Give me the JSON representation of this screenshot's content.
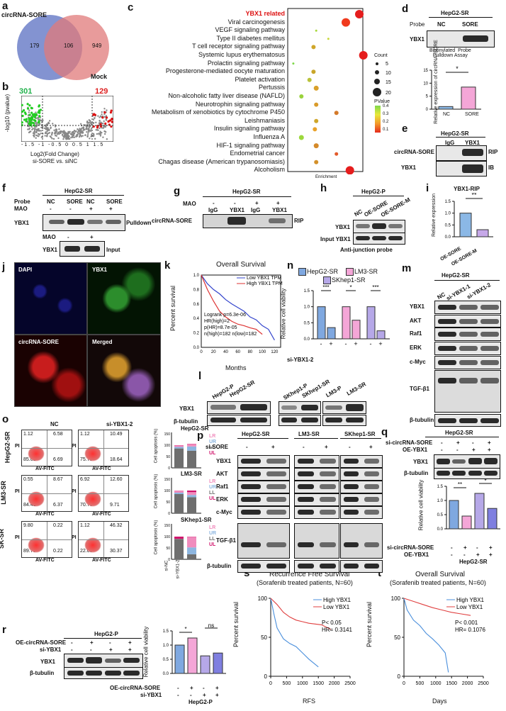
{
  "labels": {
    "a": "a",
    "b": "b",
    "c": "c",
    "d": "d",
    "e": "e",
    "f": "f",
    "g": "g",
    "h": "h",
    "i": "i",
    "j": "j",
    "k": "k",
    "l": "l",
    "m": "m",
    "n": "n",
    "o": "o",
    "p": "p",
    "q": "q",
    "r": "r",
    "s": "s",
    "t": "t"
  },
  "panel_a": {
    "left": "circRNA-SORE",
    "right": "Mock",
    "n_left": "179",
    "n_mid": "106",
    "n_right": "949"
  },
  "panel_b": {
    "n_down": "301",
    "n_up": "129",
    "ylabel": "-log10 (pvalue)",
    "xlabel": "Log2(Fold Change)",
    "subtitle": "si-SORE vs. siNC",
    "yticks": [
      "4",
      "3",
      "2",
      "1",
      "0"
    ],
    "xticks": [
      "-1.5",
      "-1",
      "-0.5",
      "0",
      "0.5",
      "1",
      "1.5"
    ]
  },
  "panel_c": {
    "chart_data": {
      "type": "scatter",
      "xlabel": "Enrichment",
      "terms": [
        "YBX1 related",
        "Viral carcinogenesis",
        "VEGF signaling pathway",
        "Type II diabetes mellitus",
        "T cell receptor signaling pathway",
        "Systemic lupus erythematosus",
        "Prolactin signaling pathway",
        "Progesterone-mediated oocyte maturation",
        "Platelet activation",
        "Pertussis",
        "Non-alcoholic fatty liver disease (NAFLD)",
        "Neurotrophin signaling pathway",
        "Metabolism of xenobiotics by cytochrome P450",
        "Leishmaniasis",
        "Insulin signaling pathway",
        "Influenza A",
        "HIF-1 signaling pathway",
        "Endometrial cancer",
        "Chagas disease (American trypanosomiasis)",
        "Alcoholism"
      ],
      "legend_count_title": "Count",
      "legend_count": [
        "5",
        "10",
        "15",
        "20"
      ],
      "legend_p_title": "PValue",
      "legend_p": [
        "0.4",
        "0.3",
        "0.2",
        "0.1"
      ]
    }
  },
  "panel_d": {
    "cell": "HepG2-SR",
    "probe": "Probe",
    "nc": "NC",
    "sore": "SORE",
    "protein": "YBX1",
    "assay": "Biotinylated  Probe\nPulldown Assay",
    "ylabel": "Relative expression of circRNA-SORE",
    "sig": "*",
    "chart_data": {
      "type": "bar",
      "categories": [
        "NC",
        "SORE"
      ],
      "values": [
        1,
        8.5
      ],
      "ylim": [
        0,
        15
      ],
      "yticks": [
        "0",
        "5",
        "10",
        "15"
      ]
    }
  },
  "panel_e": {
    "cell": "HepG2-SR",
    "igg": "IgG",
    "ybx1": "YBX1",
    "row1": "circRNA-SORE",
    "row2": "YBX1",
    "rip": "RIP",
    "ib": "IB"
  },
  "panel_f": {
    "probe": "Probe",
    "mao": "MAO",
    "cell": "HepG2-SR",
    "cols": [
      "NC",
      "SORE",
      "NC",
      "SORE"
    ],
    "mao_vals": [
      "-",
      "-",
      "+",
      "+"
    ],
    "ybx1": "YBX1",
    "pulldown": "Pulldown",
    "mao2": "MAO",
    "mao2_vals": [
      "-",
      "+"
    ],
    "ybx1b": "YBX1",
    "input": "Input"
  },
  "panel_g": {
    "cell": "HepG2-SR",
    "mao": "MAO",
    "mao_vals": [
      "-",
      "-",
      "+",
      "+"
    ],
    "cols": [
      "IgG",
      "YBX1",
      "IgG",
      "YBX1"
    ],
    "row": "circRNA-SORE",
    "rip": "RIP"
  },
  "panel_h": {
    "cell": "HepG2-P",
    "cols": [
      "NC",
      "OE-SORE",
      "OE-SORE-M"
    ],
    "row1": "YBX1",
    "row2": "Input YBX1",
    "caption": "Anti-junction probe"
  },
  "panel_i": {
    "title": "YBX1-RIP",
    "ylabel": "Relative expression",
    "sig": "**",
    "chart_data": {
      "type": "bar",
      "categories": [
        "OE-SORE",
        "OE-SORE-M"
      ],
      "values": [
        1.0,
        0.3
      ],
      "ylim": [
        0,
        1.5
      ],
      "yticks": [
        "0.0",
        "0.5",
        "1.0",
        "1.5"
      ]
    }
  },
  "panel_j": {
    "dapi": "DAPI",
    "ybx1": "YBX1",
    "circ": "circRNA-SORE",
    "merged": "Merged"
  },
  "panel_k": {
    "title": "Overall Survival",
    "ylabel": "Percent survival",
    "xlabel": "Months",
    "legend": [
      "Low YBX1 TPM",
      "High YBX1 TPM"
    ],
    "stats": [
      "Logrank p=6.3e-06",
      "HR(high)=2",
      "p(HR)=8.7e-05",
      "n(high)=182   n(low)=182"
    ],
    "xticks": [
      "0",
      "20",
      "40",
      "60",
      "80",
      "100",
      "120"
    ],
    "yticks": [
      "0.0",
      "0.2",
      "0.4",
      "0.6",
      "0.8",
      "1.0"
    ]
  },
  "panel_n": {
    "legend": [
      "HepG2-SR",
      "LM3-SR",
      "SKhep1-SR"
    ],
    "ylabel": "Relative cell viability",
    "xlab": "si-YBX1-2",
    "signs": [
      "-",
      "+",
      "-",
      "+",
      "-",
      "+"
    ],
    "sigs": [
      "***",
      "*",
      "***"
    ],
    "chart_data": {
      "type": "bar",
      "series": [
        {
          "name": "HepG2-SR",
          "values": [
            1.0,
            0.35
          ]
        },
        {
          "name": "LM3-SR",
          "values": [
            1.0,
            0.58
          ]
        },
        {
          "name": "SKhep1-SR",
          "values": [
            1.0,
            0.25
          ]
        }
      ],
      "ylim": [
        0,
        1.5
      ],
      "yticks": [
        "0.0",
        "0.5",
        "1.0",
        "1.5"
      ]
    }
  },
  "panel_l": {
    "cols": [
      "HepG2-P",
      "HepG2-SR",
      "SKhep1-P",
      "SKhep1-SR",
      "LM3-P",
      "LM3-SR"
    ],
    "row1": "YBX1",
    "row2": "β-tubulin"
  },
  "panel_m": {
    "cell": "HepG2-SR",
    "cols": [
      "NC",
      "si-YBX1-1",
      "si-YBX1-2"
    ],
    "rows": [
      "YBX1",
      "AKT",
      "Raf1",
      "ERK",
      "c-Myc",
      "TGF-β1",
      "β-tubulin"
    ]
  },
  "panel_o": {
    "col1": "NC",
    "col2": "si-YBX1-2",
    "rows": [
      {
        "name": "HepG2-SR",
        "nc": [
          "1.12",
          "6.58",
          "85.61",
          "6.69"
        ],
        "si": [
          "1.12",
          "10.49",
          "75.75",
          "18.64"
        ],
        "bar_title": "HepG2-SR"
      },
      {
        "name": "LM3-SR",
        "nc": [
          "0.55",
          "8.67",
          "84.41",
          "6.37"
        ],
        "si": [
          "6.92",
          "12.60",
          "70.76",
          "9.71"
        ],
        "bar_title": "LM3-SR"
      },
      {
        "name": "SK-SR",
        "nc": [
          "9.80",
          "0.22",
          "89.76",
          "0.22"
        ],
        "si": [
          "1.12",
          "46.32",
          "22.09",
          "30.37"
        ],
        "bar_title": "SKhep1-SR"
      }
    ],
    "pi": "PI",
    "av": "AV-FITC",
    "bar_ylabel": "Cell apoptosis (%)",
    "bar_legend": [
      "LR",
      "UR",
      "LL",
      "UL"
    ],
    "bar_x": [
      "si-NC",
      "si-YBX1-2"
    ],
    "yticks": [
      "0",
      "50",
      "100",
      "150"
    ]
  },
  "panel_p": {
    "cells": [
      "HepG2-SR",
      "LM3-SR",
      "SKhep1-SR"
    ],
    "si": "si-SORE",
    "signs": [
      "-",
      "+",
      "-",
      "+",
      "-",
      "+"
    ],
    "rows": [
      "YBX1",
      "AKT",
      "Raf1",
      "ERK",
      "c-Myc",
      "TGF-β1",
      "β-tubulin"
    ]
  },
  "panel_q": {
    "cell": "HepG2-SR",
    "r1": "si-circRNA-SORE",
    "r2": "OE-YBX1",
    "r1v": [
      "-",
      "+",
      "-",
      "+"
    ],
    "r2v": [
      "-",
      "-",
      "+",
      "+"
    ],
    "rows": [
      "YBX1",
      "β-tubulin"
    ],
    "ylabel": "Relative cell viability",
    "sigs": [
      "**",
      "*"
    ],
    "xrows": [
      "si-circRNA-SORE",
      "OE-YBX1"
    ],
    "xcell": "HepG2-SR",
    "chart_data": {
      "type": "bar",
      "values": [
        1.0,
        0.45,
        1.25,
        0.72
      ],
      "ylim": [
        0,
        1.5
      ],
      "yticks": [
        "0.0",
        "0.5",
        "1.0",
        "1.5"
      ]
    }
  },
  "panel_r": {
    "cell": "HepG2-P",
    "r1": "OE-circRNA-SORE",
    "r2": "si-YBX1",
    "r1v": [
      "-",
      "+",
      "-",
      "+"
    ],
    "r2v": [
      "-",
      "-",
      "+",
      "+"
    ],
    "rows": [
      "YBX1",
      "β-tubulin"
    ],
    "ylabel": "Relative cell viability",
    "sigs": [
      "*",
      "ns"
    ],
    "xrows": [
      "OE-circRNA-SORE",
      "si-YBX1"
    ],
    "xcell": "HepG2-P",
    "chart_data": {
      "type": "bar",
      "values": [
        1.0,
        1.25,
        0.62,
        0.72
      ],
      "ylim": [
        0,
        1.5
      ],
      "yticks": [
        "0.0",
        "0.5",
        "1.0",
        "1.5"
      ]
    }
  },
  "panel_s": {
    "title": "Recurrence Free Survival",
    "subtitle": "(Sorafenib treated patients, N=60)",
    "ylabel": "Percent survival",
    "xlabel": "RFS",
    "legend": [
      "High YBX1",
      "Low YBX1"
    ],
    "stats": [
      "P< 0.05",
      "HR= 0.3141"
    ],
    "xticks": [
      "0",
      "500",
      "1000",
      "1500",
      "2000",
      "2500"
    ],
    "yticks": [
      "0",
      "50",
      "100"
    ]
  },
  "panel_t": {
    "title": "Overall Survival",
    "subtitle": "(Sorafenib treated patients, N=60)",
    "ylabel": "Percent survival",
    "xlabel": "Days",
    "legend": [
      "High YBX1",
      "Low YBX1"
    ],
    "stats": [
      "P< 0.001",
      "HR= 0.1076"
    ],
    "xticks": [
      "0",
      "500",
      "1000",
      "1500",
      "2000",
      "2500"
    ],
    "yticks": [
      "0",
      "50",
      "100"
    ]
  }
}
